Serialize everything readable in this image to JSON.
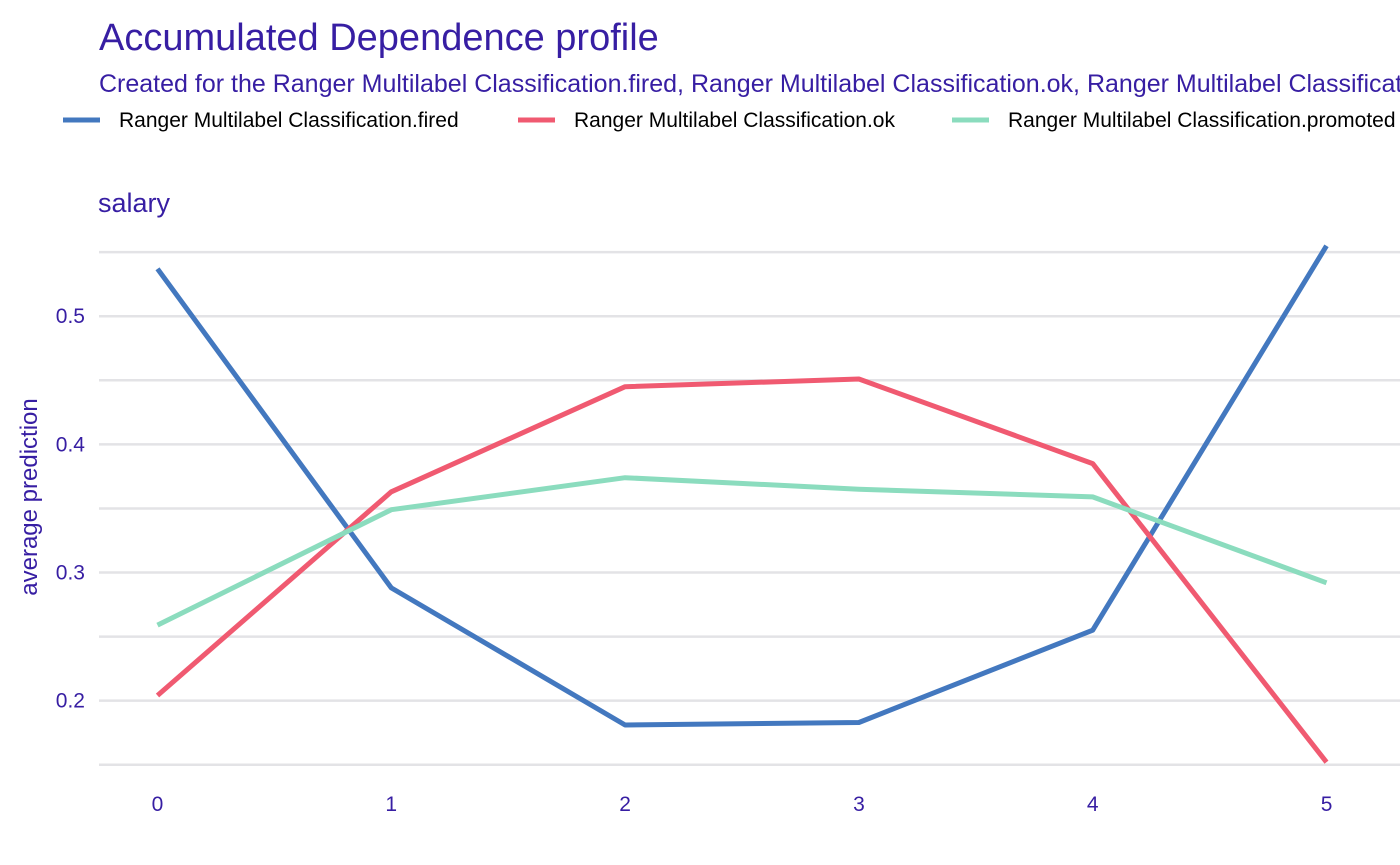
{
  "chart_data": {
    "type": "line",
    "title": "Accumulated Dependence profile",
    "subtitle": "Created for the Ranger Multilabel Classification.fired, Ranger Multilabel Classification.ok, Ranger Multilabel Classification.promoted model",
    "facet_label": "salary",
    "xlabel": "",
    "ylabel": "average prediction",
    "x": [
      0,
      1,
      2,
      3,
      4,
      5
    ],
    "x_ticks": [
      "0",
      "1",
      "2",
      "3",
      "4",
      "5"
    ],
    "y_ticks": [
      "0.2",
      "0.3",
      "0.4",
      "0.5"
    ],
    "y_tick_values": [
      0.2,
      0.3,
      0.4,
      0.5
    ],
    "y_minor_gridlines": [
      0.15,
      0.25,
      0.35,
      0.45,
      0.55
    ],
    "xlim": [
      -0.25,
      5.25
    ],
    "ylim": [
      0.142,
      0.579
    ],
    "grid": "horizontal",
    "legend_position": "top",
    "series": [
      {
        "name": "Ranger Multilabel Classification.fired",
        "color": "#4378bf",
        "values": [
          0.537,
          0.288,
          0.181,
          0.183,
          0.255,
          0.555
        ]
      },
      {
        "name": "Ranger Multilabel Classification.ok",
        "color": "#f05a71",
        "values": [
          0.204,
          0.363,
          0.445,
          0.451,
          0.385,
          0.152
        ]
      },
      {
        "name": "Ranger Multilabel Classification.promoted",
        "color": "#8bdcbe",
        "values": [
          0.259,
          0.349,
          0.374,
          0.365,
          0.359,
          0.292
        ]
      }
    ]
  }
}
